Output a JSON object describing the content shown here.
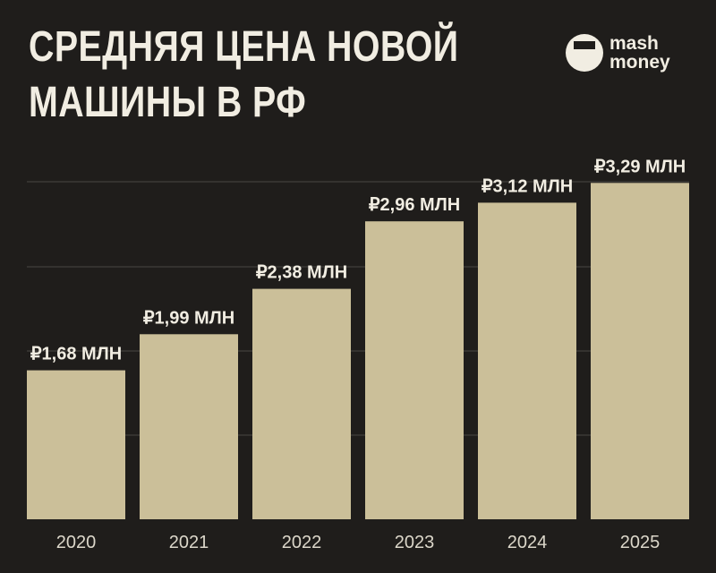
{
  "chart_data": {
    "type": "bar",
    "title": "СРЕДНЯЯ ЦЕНА НОВОЙ МАШИНЫ В РФ",
    "categories": [
      "2020",
      "2021",
      "2022",
      "2023",
      "2024",
      "2025"
    ],
    "values": [
      1.68,
      1.99,
      2.38,
      2.96,
      3.12,
      3.29
    ],
    "value_labels": [
      "₽1,68 МЛН",
      "₽1,99 МЛН",
      "₽2,38 МЛН",
      "₽2,96 МЛН",
      "₽3,12 МЛН",
      "₽3,29 МЛН"
    ],
    "color": "#cbbf99",
    "ylim": [
      0.4,
      3.4
    ],
    "grid": true
  },
  "brand": {
    "line1": "mash",
    "line2": "money"
  }
}
